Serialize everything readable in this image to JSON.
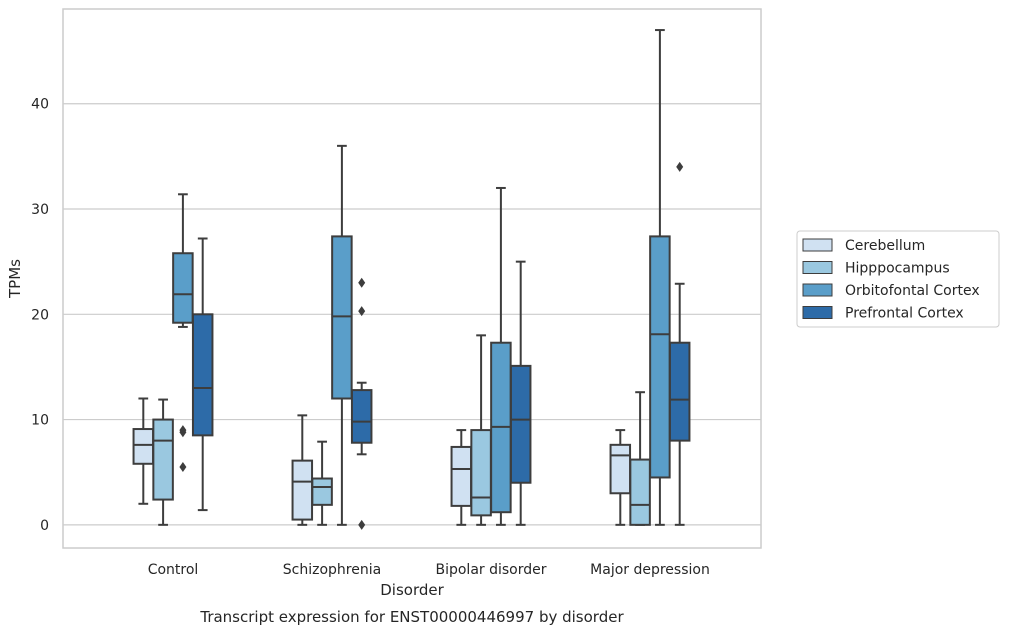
{
  "chart_data": {
    "type": "box",
    "title": "",
    "caption": "Transcript expression for ENST00000446997 by disorder",
    "xlabel": "Disorder",
    "ylabel": "TPMs",
    "ylim": [
      -2.2,
      49
    ],
    "yticks": [
      0,
      10,
      20,
      30,
      40
    ],
    "grid": "horizontal",
    "legend_position": "right",
    "categories": [
      "Control",
      "Schizophrenia",
      "Bipolar disorder",
      "Major depression"
    ],
    "series": [
      {
        "name": "Cerebellum",
        "color": "#d0e1f2",
        "boxes": [
          {
            "whisker_low": 2.0,
            "q1": 5.8,
            "median": 7.6,
            "q3": 9.1,
            "whisker_high": 12.0,
            "outliers": []
          },
          {
            "whisker_low": 0.0,
            "q1": 0.5,
            "median": 4.1,
            "q3": 6.1,
            "whisker_high": 10.4,
            "outliers": []
          },
          {
            "whisker_low": 0.0,
            "q1": 1.8,
            "median": 5.3,
            "q3": 7.4,
            "whisker_high": 9.0,
            "outliers": []
          },
          {
            "whisker_low": 0.0,
            "q1": 3.0,
            "median": 6.6,
            "q3": 7.6,
            "whisker_high": 9.0,
            "outliers": []
          }
        ]
      },
      {
        "name": "Hipppocampus",
        "color": "#9ac8e0",
        "boxes": [
          {
            "whisker_low": 0.0,
            "q1": 2.4,
            "median": 8.0,
            "q3": 10.0,
            "whisker_high": 11.9,
            "outliers": []
          },
          {
            "whisker_low": 0.0,
            "q1": 1.9,
            "median": 3.6,
            "q3": 4.4,
            "whisker_high": 7.9,
            "outliers": []
          },
          {
            "whisker_low": 0.0,
            "q1": 0.9,
            "median": 2.6,
            "q3": 9.0,
            "whisker_high": 18.0,
            "outliers": []
          },
          {
            "whisker_low": 0.0,
            "q1": 0.0,
            "median": 1.9,
            "q3": 6.2,
            "whisker_high": 12.6,
            "outliers": []
          }
        ]
      },
      {
        "name": "Orbitofontal Cortex",
        "color": "#5a9ec9",
        "boxes": [
          {
            "whisker_low": 18.8,
            "q1": 19.2,
            "median": 21.9,
            "q3": 25.8,
            "whisker_high": 31.4,
            "outliers": [
              5.5,
              8.8,
              9.0
            ]
          },
          {
            "whisker_low": 0.0,
            "q1": 12.0,
            "median": 19.8,
            "q3": 27.4,
            "whisker_high": 36.0,
            "outliers": []
          },
          {
            "whisker_low": 0.0,
            "q1": 1.2,
            "median": 9.3,
            "q3": 17.3,
            "whisker_high": 32.0,
            "outliers": []
          },
          {
            "whisker_low": 0.0,
            "q1": 4.5,
            "median": 18.1,
            "q3": 27.4,
            "whisker_high": 47.0,
            "outliers": []
          }
        ]
      },
      {
        "name": "Prefrontal Cortex",
        "color": "#2d6ba8",
        "boxes": [
          {
            "whisker_low": 1.4,
            "q1": 8.5,
            "median": 13.0,
            "q3": 20.0,
            "whisker_high": 27.2,
            "outliers": []
          },
          {
            "whisker_low": 6.7,
            "q1": 7.8,
            "median": 9.8,
            "q3": 12.8,
            "whisker_high": 13.5,
            "outliers": [
              0.0,
              20.3,
              23.0
            ]
          },
          {
            "whisker_low": 0.0,
            "q1": 4.0,
            "median": 10.0,
            "q3": 15.1,
            "whisker_high": 25.0,
            "outliers": []
          },
          {
            "whisker_low": 0.0,
            "q1": 8.0,
            "median": 11.9,
            "q3": 17.3,
            "whisker_high": 22.9,
            "outliers": [
              34.0
            ]
          }
        ]
      }
    ]
  }
}
